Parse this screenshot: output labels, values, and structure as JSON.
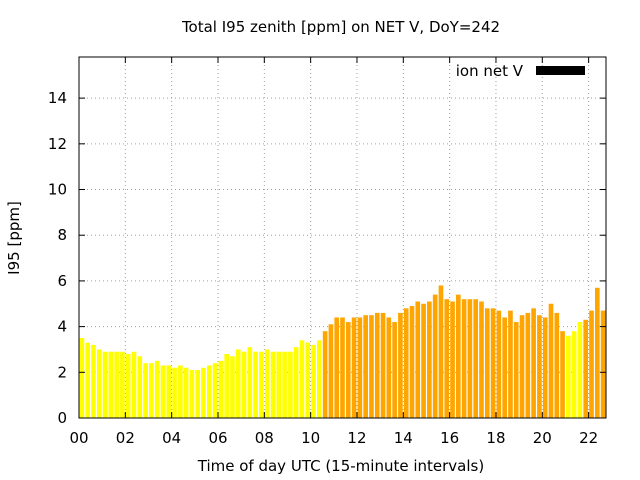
{
  "chart_data": {
    "type": "bar",
    "title": "Total I95 zenith [ppm] on NET V, DoY=242",
    "xlabel": "Time of day UTC (15-minute intervals)",
    "ylabel": "I95 [ppm]",
    "xlim": [
      0,
      22.75
    ],
    "ylim": [
      0,
      15.8
    ],
    "x_ticks": [
      0,
      2,
      4,
      6,
      8,
      10,
      12,
      14,
      16,
      18,
      20,
      22
    ],
    "x_tick_labels": [
      "00",
      "02",
      "04",
      "06",
      "08",
      "10",
      "12",
      "14",
      "16",
      "18",
      "20",
      "22"
    ],
    "y_ticks": [
      0,
      2,
      4,
      6,
      8,
      10,
      12,
      14
    ],
    "y_tick_labels": [
      "0",
      "2",
      "4",
      "6",
      "8",
      "10",
      "12",
      "14"
    ],
    "grid": true,
    "legend": {
      "label": "ion net V",
      "color": "#000000",
      "placement": "top-right"
    },
    "bar_width_hours": 0.2,
    "colors": {
      "low": "#ffff00",
      "elevated": "#ffa500",
      "legend": "#000000"
    },
    "series": [
      {
        "x": [
          0.125,
          0.375,
          0.625,
          0.875,
          1.125,
          1.375,
          1.625,
          1.875,
          2.125,
          2.375,
          2.625,
          2.875,
          3.125,
          3.375,
          3.625,
          3.875,
          4.125,
          4.375,
          4.625,
          4.875,
          5.125,
          5.375,
          5.625,
          5.875,
          6.125,
          6.375,
          6.625,
          6.875,
          7.125,
          7.375,
          7.625,
          7.875,
          8.125,
          8.375,
          8.625,
          8.875,
          9.125,
          9.375,
          9.625,
          9.875,
          10.125,
          10.375,
          10.625,
          10.875,
          11.125,
          11.375,
          11.625,
          11.875,
          12.125,
          12.375,
          12.625,
          12.875,
          13.125,
          13.375,
          13.625,
          13.875,
          14.125,
          14.375,
          14.625,
          14.875,
          15.125,
          15.375,
          15.625,
          15.875,
          16.125,
          16.375,
          16.625,
          16.875,
          17.125,
          17.375,
          17.625,
          17.875,
          18.125,
          18.375,
          18.625,
          18.875,
          19.125,
          19.375,
          19.625,
          19.875,
          20.125,
          20.375,
          20.625,
          20.875,
          21.125,
          21.375,
          21.625,
          21.875,
          22.125,
          22.375,
          22.625
        ],
        "values": [
          3.5,
          3.3,
          3.2,
          3.0,
          2.9,
          2.9,
          2.9,
          2.9,
          2.8,
          2.9,
          2.7,
          2.4,
          2.4,
          2.5,
          2.3,
          2.3,
          2.2,
          2.3,
          2.2,
          2.1,
          2.1,
          2.2,
          2.3,
          2.4,
          2.5,
          2.8,
          2.7,
          3.0,
          2.9,
          3.1,
          2.9,
          2.9,
          3.0,
          2.9,
          2.9,
          2.9,
          2.9,
          3.1,
          3.4,
          3.3,
          3.2,
          3.4,
          3.8,
          4.1,
          4.4,
          4.4,
          4.2,
          4.4,
          4.4,
          4.5,
          4.5,
          4.6,
          4.6,
          4.4,
          4.2,
          4.6,
          4.8,
          4.9,
          5.1,
          5.0,
          5.1,
          5.4,
          5.8,
          5.2,
          5.1,
          5.4,
          5.2,
          5.2,
          5.2,
          5.1,
          4.8,
          4.8,
          4.7,
          4.4,
          4.7,
          4.2,
          4.5,
          4.6,
          4.8,
          4.5,
          4.4,
          5.0,
          4.6,
          3.8,
          3.6,
          3.8,
          4.2,
          4.3,
          4.7,
          5.7,
          4.7
        ],
        "level": [
          "low",
          "low",
          "low",
          "low",
          "low",
          "low",
          "low",
          "low",
          "low",
          "low",
          "low",
          "low",
          "low",
          "low",
          "low",
          "low",
          "low",
          "low",
          "low",
          "low",
          "low",
          "low",
          "low",
          "low",
          "low",
          "low",
          "low",
          "low",
          "low",
          "low",
          "low",
          "low",
          "low",
          "low",
          "low",
          "low",
          "low",
          "low",
          "low",
          "low",
          "low",
          "low",
          "elevated",
          "elevated",
          "elevated",
          "elevated",
          "elevated",
          "elevated",
          "elevated",
          "elevated",
          "elevated",
          "elevated",
          "elevated",
          "elevated",
          "elevated",
          "elevated",
          "elevated",
          "elevated",
          "elevated",
          "elevated",
          "elevated",
          "elevated",
          "elevated",
          "elevated",
          "elevated",
          "elevated",
          "elevated",
          "elevated",
          "elevated",
          "elevated",
          "elevated",
          "elevated",
          "elevated",
          "elevated",
          "elevated",
          "elevated",
          "elevated",
          "elevated",
          "elevated",
          "elevated",
          "elevated",
          "elevated",
          "elevated",
          "elevated",
          "low",
          "low",
          "low",
          "elevated",
          "elevated",
          "elevated",
          "elevated",
          "elevated"
        ]
      }
    ]
  }
}
